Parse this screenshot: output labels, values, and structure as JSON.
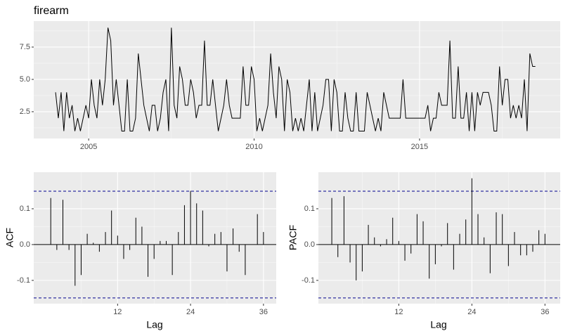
{
  "chart_data": [
    {
      "type": "line",
      "title": "firearm",
      "color": "#000000",
      "x": [
        2004,
        2004.083,
        2004.167,
        2004.25,
        2004.333,
        2004.417,
        2004.5,
        2004.583,
        2004.667,
        2004.75,
        2004.833,
        2004.917,
        2005,
        2005.083,
        2005.167,
        2005.25,
        2005.333,
        2005.417,
        2005.5,
        2005.583,
        2005.667,
        2005.75,
        2005.833,
        2005.917,
        2006,
        2006.083,
        2006.167,
        2006.25,
        2006.333,
        2006.417,
        2006.5,
        2006.583,
        2006.667,
        2006.75,
        2006.833,
        2006.917,
        2007,
        2007.083,
        2007.167,
        2007.25,
        2007.333,
        2007.417,
        2007.5,
        2007.583,
        2007.667,
        2007.75,
        2007.833,
        2007.917,
        2008,
        2008.083,
        2008.167,
        2008.25,
        2008.333,
        2008.417,
        2008.5,
        2008.583,
        2008.667,
        2008.75,
        2008.833,
        2008.917,
        2009,
        2009.083,
        2009.167,
        2009.25,
        2009.333,
        2009.417,
        2009.5,
        2009.583,
        2009.667,
        2009.75,
        2009.833,
        2009.917,
        2010,
        2010.083,
        2010.167,
        2010.25,
        2010.333,
        2010.417,
        2010.5,
        2010.583,
        2010.667,
        2010.75,
        2010.833,
        2010.917,
        2011,
        2011.083,
        2011.167,
        2011.25,
        2011.333,
        2011.417,
        2011.5,
        2011.583,
        2011.667,
        2011.75,
        2011.833,
        2011.917,
        2012,
        2012.083,
        2012.167,
        2012.25,
        2012.333,
        2012.417,
        2012.5,
        2012.583,
        2012.667,
        2012.75,
        2012.833,
        2012.917,
        2013,
        2013.083,
        2013.167,
        2013.25,
        2013.333,
        2013.417,
        2013.5,
        2013.583,
        2013.667,
        2013.75,
        2013.833,
        2013.917,
        2014,
        2014.083,
        2014.167,
        2014.25,
        2014.333,
        2014.417,
        2014.5,
        2014.583,
        2014.667,
        2014.75,
        2014.833,
        2014.917,
        2015,
        2015.083,
        2015.167,
        2015.25,
        2015.333,
        2015.417,
        2015.5,
        2015.583,
        2015.667,
        2015.75,
        2015.833,
        2015.917,
        2016,
        2016.083,
        2016.167,
        2016.25,
        2016.333,
        2016.417,
        2016.5,
        2016.583,
        2016.667,
        2016.75,
        2016.833,
        2016.917,
        2017,
        2017.083,
        2017.167,
        2017.25,
        2017.333,
        2017.417,
        2017.5,
        2017.583,
        2017.667,
        2017.75,
        2017.833,
        2017.917,
        2018,
        2018.083,
        2018.167,
        2018.25,
        2018.333,
        2018.417,
        2018.5
      ],
      "values": [
        4,
        2,
        4,
        1,
        4,
        2,
        3,
        1,
        2,
        1,
        2,
        3,
        2,
        5,
        3,
        2,
        5,
        3,
        5,
        9,
        8,
        3,
        5,
        3,
        1,
        1,
        5,
        1,
        1,
        2,
        7,
        5,
        3,
        2,
        1,
        3,
        3,
        1,
        2,
        4,
        5,
        1,
        9,
        3,
        2,
        6,
        5,
        3,
        3,
        5,
        4,
        2,
        3,
        3,
        8,
        3,
        3,
        5,
        3,
        1,
        2,
        3,
        5,
        3,
        2,
        2,
        2,
        2,
        6,
        3,
        3,
        6,
        5,
        1,
        2,
        1,
        2,
        3,
        7,
        4,
        2,
        6,
        5,
        1,
        5,
        4,
        1,
        2,
        1,
        2,
        1,
        3,
        5,
        1,
        4,
        1,
        2,
        3,
        5,
        5,
        1,
        5,
        4,
        1,
        1,
        4,
        2,
        1,
        1,
        4,
        1,
        1,
        1,
        4,
        3,
        2,
        1,
        2,
        1,
        4,
        3,
        2,
        2,
        2,
        2,
        2,
        5,
        2,
        2,
        2,
        2,
        2,
        2,
        2,
        2,
        3,
        1,
        2,
        2,
        4,
        3,
        3,
        3,
        8,
        2,
        2,
        6,
        2,
        2,
        4,
        1,
        4,
        1,
        4,
        3,
        4,
        4,
        4,
        3,
        1,
        1,
        6,
        3,
        5,
        5,
        2,
        3,
        2,
        3,
        2,
        5,
        1,
        7,
        6,
        6
      ],
      "xlim": [
        2003.34,
        2019.25
      ],
      "xticks": [
        2005,
        2010,
        2015
      ],
      "ylim": [
        0.43,
        9.51
      ],
      "yticks": [
        2.5,
        {
          "value": 5.0,
          "label": "5.0"
        },
        7.5
      ],
      "grid": true
    },
    {
      "type": "bar",
      "y_label": "ACF",
      "x_label": "Lag",
      "color": "#000000",
      "x": [
        1,
        2,
        3,
        4,
        5,
        6,
        7,
        8,
        9,
        10,
        11,
        12,
        13,
        14,
        15,
        16,
        17,
        18,
        19,
        20,
        21,
        22,
        23,
        24,
        25,
        26,
        27,
        28,
        29,
        30,
        31,
        32,
        33,
        34,
        35,
        36
      ],
      "values": [
        0.13,
        -0.015,
        0.125,
        -0.015,
        -0.115,
        -0.085,
        0.03,
        0.005,
        -0.02,
        0.035,
        0.095,
        0.025,
        -0.04,
        -0.015,
        0.075,
        0.05,
        -0.09,
        -0.04,
        0.01,
        0.01,
        -0.085,
        0.035,
        0.11,
        0.15,
        0.115,
        0.095,
        -0.005,
        0.03,
        0.035,
        -0.075,
        0.045,
        -0.02,
        -0.085,
        0.0,
        0.085,
        0.035
      ],
      "xlim": [
        -1.8,
        38.1
      ],
      "xticks": [
        12,
        24,
        36
      ],
      "ylim": [
        -0.165,
        0.202
      ],
      "yticks": [
        -0.1,
        {
          "value": 0.0,
          "label": "0.0"
        },
        0.1
      ],
      "hlines": [
        0.149,
        -0.149
      ],
      "hline_color": "#00008b",
      "grid": true
    },
    {
      "type": "bar",
      "y_label": "PACF",
      "x_label": "Lag",
      "color": "#000000",
      "x": [
        1,
        2,
        3,
        4,
        5,
        6,
        7,
        8,
        9,
        10,
        11,
        12,
        13,
        14,
        15,
        16,
        17,
        18,
        19,
        20,
        21,
        22,
        23,
        24,
        25,
        26,
        27,
        28,
        29,
        30,
        31,
        32,
        33,
        34,
        35,
        36
      ],
      "values": [
        0.13,
        -0.035,
        0.135,
        -0.05,
        -0.1,
        -0.075,
        0.055,
        0.02,
        -0.005,
        0.015,
        0.075,
        0.01,
        -0.045,
        -0.025,
        0.085,
        0.065,
        -0.095,
        -0.055,
        -0.005,
        0.06,
        -0.07,
        0.03,
        0.07,
        0.185,
        0.085,
        0.02,
        -0.08,
        0.09,
        0.085,
        -0.06,
        0.035,
        -0.03,
        -0.03,
        -0.02,
        0.04,
        0.03
      ],
      "xlim": [
        -1.2,
        38.5
      ],
      "xticks": [
        12,
        24,
        36
      ],
      "ylim": [
        -0.165,
        0.202
      ],
      "yticks": [
        -0.1,
        {
          "value": 0.0,
          "label": "0.0"
        },
        0.1
      ],
      "hlines": [
        0.149,
        -0.149
      ],
      "hline_color": "#00008b",
      "grid": true
    }
  ]
}
